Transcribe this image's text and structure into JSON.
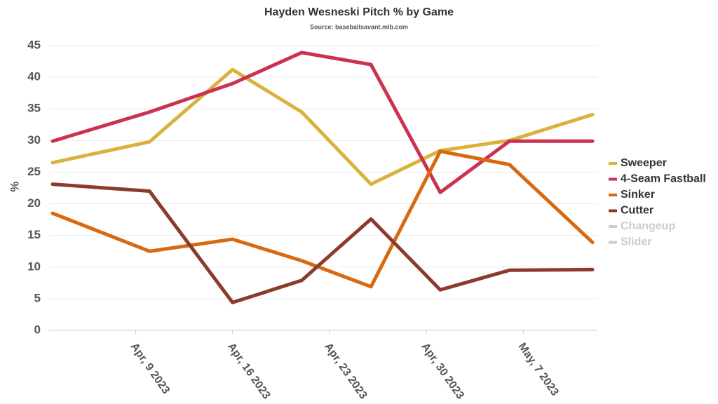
{
  "chart_data": {
    "type": "line",
    "title": "Hayden Wesneski Pitch % by Game",
    "subtitle": "Source: baseballsavant.mlb.com",
    "y_label": "%",
    "x": [
      "2023-04-03",
      "2023-04-10",
      "2023-04-16",
      "2023-04-21",
      "2023-04-26",
      "2023-05-01",
      "2023-05-06",
      "2023-05-12"
    ],
    "series": [
      {
        "name": "Sweeper",
        "color": "#dbb13e",
        "values": [
          26.5,
          29.8,
          41.2,
          34.5,
          23.1,
          28.4,
          30.0,
          34.1
        ]
      },
      {
        "name": "4-Seam Fastball",
        "color": "#cc3250",
        "values": [
          29.9,
          34.5,
          39.0,
          43.9,
          42.0,
          21.8,
          29.9,
          29.9
        ]
      },
      {
        "name": "Sinker",
        "color": "#d9690f",
        "values": [
          18.5,
          12.5,
          14.4,
          11.0,
          6.9,
          28.3,
          26.2,
          13.9
        ]
      },
      {
        "name": "Cutter",
        "color": "#8b3a2b",
        "values": [
          23.1,
          22.0,
          4.4,
          7.9,
          17.6,
          6.4,
          9.5,
          9.6
        ]
      },
      {
        "name": "Changeup",
        "color": "#cccccc",
        "hidden": true,
        "values": [
          null,
          null,
          null,
          null,
          null,
          null,
          null,
          null
        ]
      },
      {
        "name": "Slider",
        "color": "#cccccc",
        "hidden": true,
        "values": [
          null,
          null,
          null,
          null,
          null,
          null,
          null,
          null
        ]
      }
    ],
    "xlim": [
      "2023-04-03",
      "2023-05-12"
    ],
    "xticks": [
      {
        "value": "2023-04-09",
        "label": "Apr, 9 2023"
      },
      {
        "value": "2023-04-16",
        "label": "Apr, 16 2023"
      },
      {
        "value": "2023-04-23",
        "label": "Apr, 23 2023"
      },
      {
        "value": "2023-04-30",
        "label": "Apr, 30 2023"
      },
      {
        "value": "2023-05-07",
        "label": "May, 7 2023"
      }
    ],
    "ylim": [
      0,
      45
    ],
    "yticks": [
      0,
      5,
      10,
      15,
      20,
      25,
      30,
      35,
      40,
      45
    ],
    "grid": true,
    "legend": "right"
  }
}
